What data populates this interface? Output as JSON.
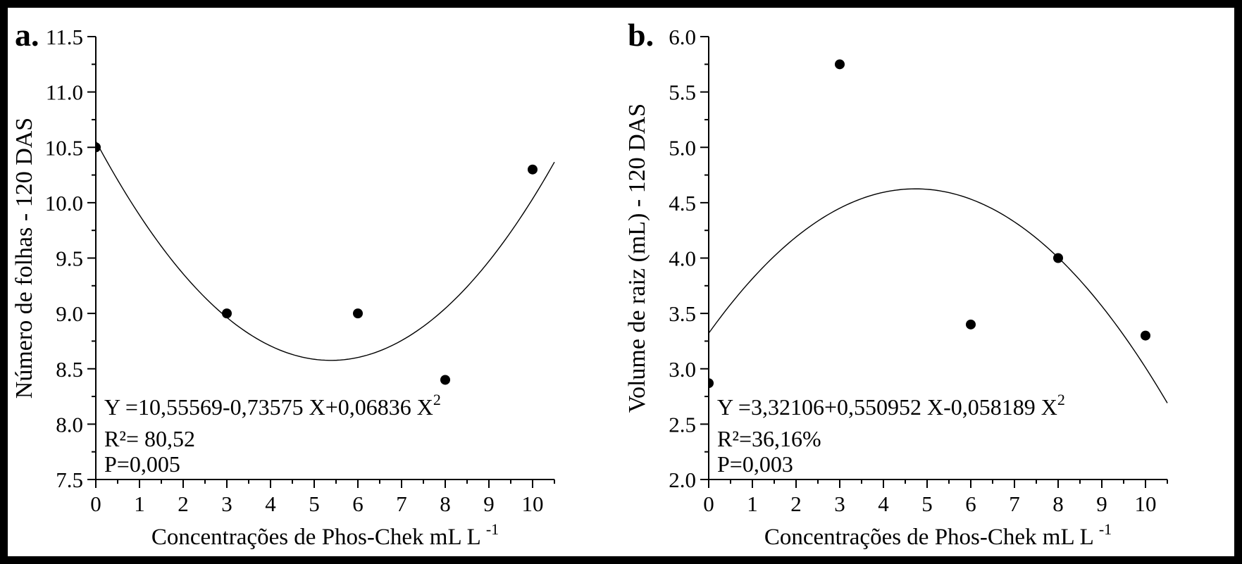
{
  "figure": {
    "background_color": "#ffffff",
    "border_color": "#000000",
    "ink_color": "#000000",
    "panel_letters": [
      "a.",
      "b."
    ]
  },
  "chart_data": [
    {
      "type": "scatter",
      "panel_label": "a.",
      "xlabel": "Concentrações de Phos-Chek mL L",
      "xlabel_superscript": "-1",
      "ylabel": "Número de folhas - 120 DAS",
      "xlim": [
        0,
        10.5
      ],
      "ylim": [
        7.5,
        11.5
      ],
      "x_major_ticks": [
        0,
        1,
        2,
        3,
        4,
        5,
        6,
        7,
        8,
        9,
        10
      ],
      "x_tick_labels": [
        "0",
        "1",
        "2",
        "3",
        "4",
        "5",
        "6",
        "7",
        "8",
        "9",
        "10"
      ],
      "x_minor_step": 0.5,
      "y_major_ticks": [
        7.5,
        8,
        8.5,
        9,
        9.5,
        10,
        10.5,
        11,
        11.5
      ],
      "y_tick_labels": [
        "7.5",
        "8.0",
        "8.5",
        "9.0",
        "9.5",
        "10.0",
        "10.5",
        "11.0",
        "11.5"
      ],
      "y_minor_step": 0.25,
      "grid": false,
      "legend": false,
      "points": [
        {
          "x": 0,
          "y": 10.5
        },
        {
          "x": 3,
          "y": 9.0
        },
        {
          "x": 6,
          "y": 9.0
        },
        {
          "x": 8,
          "y": 8.4
        },
        {
          "x": 10,
          "y": 10.3
        }
      ],
      "fit_curve": {
        "model": "quadratic",
        "coefficients": [
          10.55569,
          -0.73575,
          0.06836
        ]
      },
      "annotation": {
        "equation_base": "Y =10,55569-0,73575 X+0,06836 X",
        "equation_exponent": "2",
        "r_squared": "R²= 80,52",
        "p_value": "P=0,005"
      }
    },
    {
      "type": "scatter",
      "panel_label": "b.",
      "xlabel": "Concentrações de Phos-Chek mL L",
      "xlabel_superscript": "-1",
      "ylabel": "Volume de raiz (mL) - 120 DAS",
      "xlim": [
        0,
        10.5
      ],
      "ylim": [
        2.0,
        6.0
      ],
      "x_major_ticks": [
        0,
        1,
        2,
        3,
        4,
        5,
        6,
        7,
        8,
        9,
        10
      ],
      "x_tick_labels": [
        "0",
        "1",
        "2",
        "3",
        "4",
        "5",
        "6",
        "7",
        "8",
        "9",
        "10"
      ],
      "x_minor_step": 0.5,
      "y_major_ticks": [
        2,
        2.5,
        3,
        3.5,
        4,
        4.5,
        5,
        5.5,
        6
      ],
      "y_tick_labels": [
        "2.0",
        "2.5",
        "3.0",
        "3.5",
        "4.0",
        "4.5",
        "5.0",
        "5.5",
        "6.0"
      ],
      "y_minor_step": 0.25,
      "grid": false,
      "legend": false,
      "points": [
        {
          "x": 0,
          "y": 2.87
        },
        {
          "x": 3,
          "y": 5.75
        },
        {
          "x": 6,
          "y": 3.4
        },
        {
          "x": 8,
          "y": 4.0
        },
        {
          "x": 10,
          "y": 3.3
        }
      ],
      "fit_curve": {
        "model": "quadratic",
        "coefficients": [
          3.32106,
          0.550952,
          -0.058189
        ]
      },
      "annotation": {
        "equation_base": "Y =3,32106+0,550952 X-0,058189 X",
        "equation_exponent": "2",
        "r_squared": "R²=36,16%",
        "p_value": "P=0,003"
      }
    }
  ]
}
